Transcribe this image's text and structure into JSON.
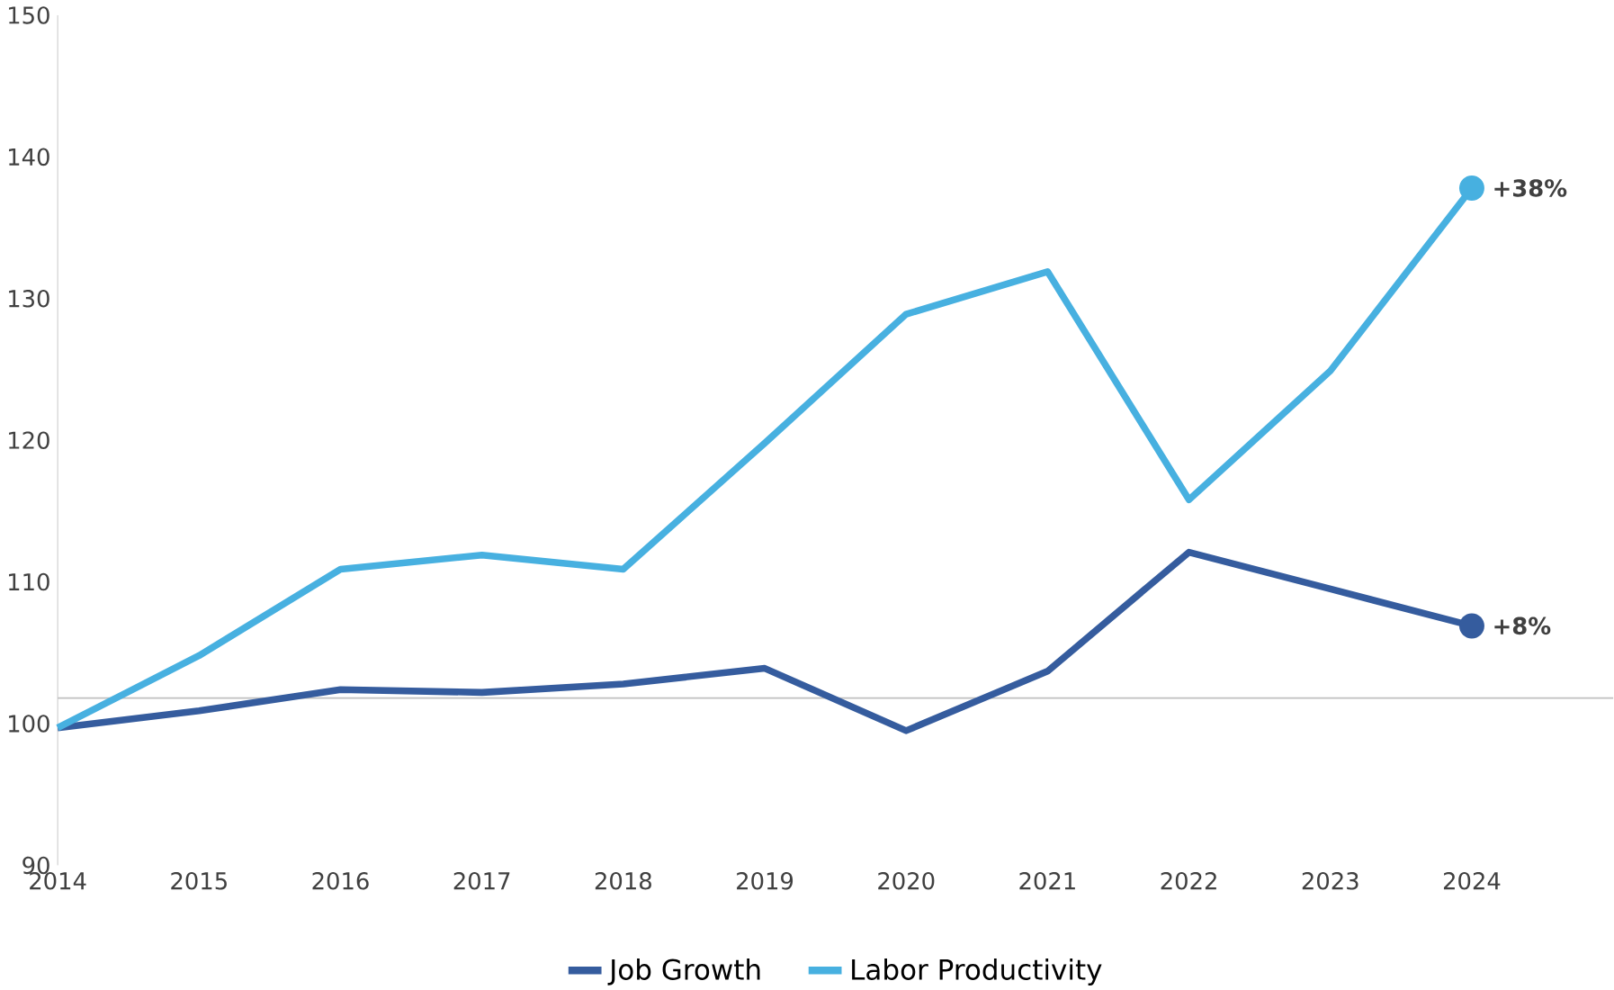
{
  "chart_data": {
    "type": "line",
    "x": [
      2014,
      2015,
      2016,
      2017,
      2018,
      2019,
      2020,
      2021,
      2022,
      2023,
      2024
    ],
    "series": [
      {
        "name": "Job Growth",
        "color": "#355c9e",
        "values": [
          99.7,
          100.9,
          102.4,
          102.2,
          102.8,
          103.9,
          99.5,
          103.7,
          112.1,
          109.5,
          106.9
        ]
      },
      {
        "name": "Labor Productivity",
        "color": "#47b0e0",
        "values": [
          99.7,
          104.8,
          110.9,
          111.9,
          110.9,
          119.8,
          128.9,
          131.9,
          115.8,
          124.9,
          137.8
        ]
      }
    ],
    "xlim": [
      2014,
      2025
    ],
    "xticks": [
      2014,
      2015,
      2016,
      2017,
      2018,
      2019,
      2020,
      2021,
      2022,
      2023,
      2024
    ],
    "ylim": [
      90,
      150
    ],
    "yticks": [
      90,
      100,
      110,
      120,
      130,
      140,
      150
    ],
    "ref_lines": [
      {
        "axis": "y",
        "value": 101.8,
        "color": "#bfbfbf"
      }
    ],
    "annotations": [
      {
        "text": "+8%",
        "x": 2024,
        "y": 106.9
      },
      {
        "text": "+38%",
        "x": 2024,
        "y": 137.8
      }
    ],
    "legend": "bottom",
    "grid": false,
    "marker": "none",
    "line_style": "solid"
  }
}
